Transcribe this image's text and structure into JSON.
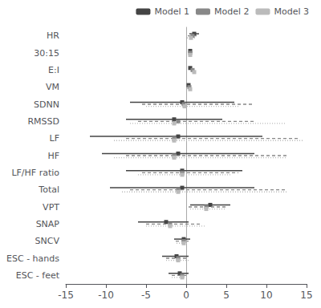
{
  "chart_data": {
    "type": "forest",
    "orientation": "horizontal",
    "categories": [
      "HR",
      "30:15",
      "E:I",
      "VM",
      "SDNN",
      "RMSSD",
      "LF",
      "HF",
      "LF/HF ratio",
      "Total",
      "VPT",
      "SNAP",
      "SNCV",
      "ESC - hands",
      "ESC - feet"
    ],
    "series": [
      {
        "name": "Model 1",
        "color": "#444444",
        "line_style": "solid",
        "marker": "square",
        "values": [
          1.0,
          0.5,
          0.5,
          0.3,
          -0.5,
          -1.5,
          -1.0,
          -1.0,
          -0.5,
          -0.5,
          3.0,
          -2.5,
          -0.3,
          -1.2,
          -0.8
        ],
        "lower": [
          0.4,
          0.5,
          0.5,
          0.3,
          -7.0,
          -7.5,
          -12.0,
          -10.5,
          -7.5,
          -9.5,
          0.5,
          -6.0,
          -1.5,
          -3.0,
          -2.2
        ],
        "upper": [
          1.6,
          0.5,
          0.5,
          0.3,
          6.0,
          4.5,
          9.5,
          8.5,
          7.0,
          8.5,
          5.5,
          0.3,
          0.5,
          0.3,
          0.3
        ]
      },
      {
        "name": "Model 2",
        "color": "#888888",
        "line_style": "dashed",
        "marker": "square",
        "values": [
          0.8,
          0.5,
          0.8,
          0.4,
          -0.3,
          -1.0,
          -1.5,
          -1.5,
          -0.5,
          -1.0,
          2.5,
          -2.0,
          -0.3,
          -1.0,
          -0.5
        ],
        "lower": [
          0.2,
          0.5,
          0.8,
          0.4,
          -5.5,
          -6.0,
          -7.5,
          -7.5,
          -5.5,
          -7.0,
          0.3,
          -5.0,
          -1.3,
          -2.5,
          -1.8
        ],
        "upper": [
          1.4,
          0.5,
          0.8,
          0.4,
          8.5,
          8.5,
          14.0,
          12.5,
          6.5,
          12.5,
          5.0,
          2.0,
          0.3,
          0.3,
          0.3
        ]
      },
      {
        "name": "Model 3",
        "color": "#bbbbbb",
        "line_style": "dotted",
        "marker": "square",
        "values": [
          0.6,
          0.5,
          1.0,
          0.5,
          -0.2,
          -1.5,
          -1.5,
          -1.5,
          -0.5,
          -1.0,
          2.5,
          -2.0,
          -0.3,
          -1.0,
          -0.5
        ],
        "lower": [
          0.1,
          0.5,
          1.0,
          0.5,
          -5.0,
          -7.0,
          -9.0,
          -9.0,
          -6.0,
          -8.0,
          0.5,
          -5.0,
          -1.2,
          -2.5,
          -1.8
        ],
        "upper": [
          1.1,
          0.5,
          1.0,
          0.5,
          6.5,
          12.5,
          14.5,
          12.5,
          5.5,
          12.5,
          5.0,
          2.5,
          0.3,
          0.3,
          0.3
        ]
      }
    ],
    "xlim": [
      -15,
      15
    ],
    "xticks": [
      -15,
      -10,
      -5,
      0,
      5,
      10,
      15
    ],
    "grid": false,
    "legend": "upper right"
  }
}
